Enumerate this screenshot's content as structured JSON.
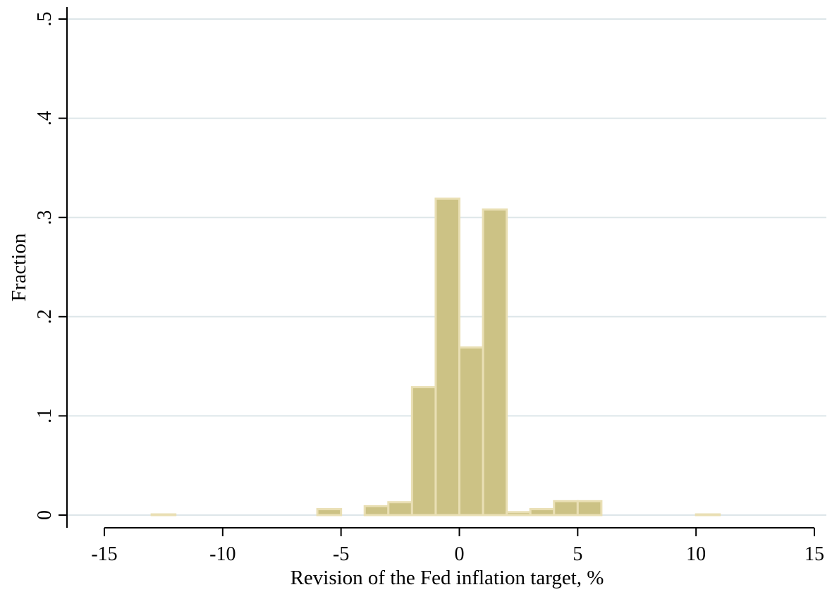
{
  "chart_data": {
    "type": "bar",
    "subtype": "histogram",
    "xlabel": "Revision of the Fed inflation target, %",
    "ylabel": "Fraction",
    "xlim": [
      -15,
      15
    ],
    "ylim": [
      0,
      0.5
    ],
    "x_ticks": [
      -15,
      -10,
      -5,
      0,
      5,
      10,
      15
    ],
    "x_tick_labels": [
      "-15",
      "-10",
      "-5",
      "0",
      "5",
      "10",
      "15"
    ],
    "y_ticks": [
      0,
      0.1,
      0.2,
      0.3,
      0.4,
      0.5
    ],
    "y_tick_labels": [
      "0",
      ".1",
      ".2",
      ".3",
      ".4",
      ".5"
    ],
    "grid": true,
    "bar_color": "#ccc285",
    "bar_edge_color": "#e9dfb4",
    "bins": [
      {
        "start": -13,
        "end": -12,
        "value": 0.0007
      },
      {
        "start": -6,
        "end": -5,
        "value": 0.006
      },
      {
        "start": -4,
        "end": -3,
        "value": 0.009
      },
      {
        "start": -3,
        "end": -2,
        "value": 0.013
      },
      {
        "start": -2,
        "end": -1,
        "value": 0.129
      },
      {
        "start": -1,
        "end": 0,
        "value": 0.319
      },
      {
        "start": 0,
        "end": 1,
        "value": 0.169
      },
      {
        "start": 1,
        "end": 2,
        "value": 0.308
      },
      {
        "start": 2,
        "end": 3,
        "value": 0.003
      },
      {
        "start": 3,
        "end": 4,
        "value": 0.006
      },
      {
        "start": 4,
        "end": 5,
        "value": 0.014
      },
      {
        "start": 5,
        "end": 6,
        "value": 0.014
      },
      {
        "start": 10,
        "end": 11,
        "value": 0.0007
      }
    ]
  }
}
